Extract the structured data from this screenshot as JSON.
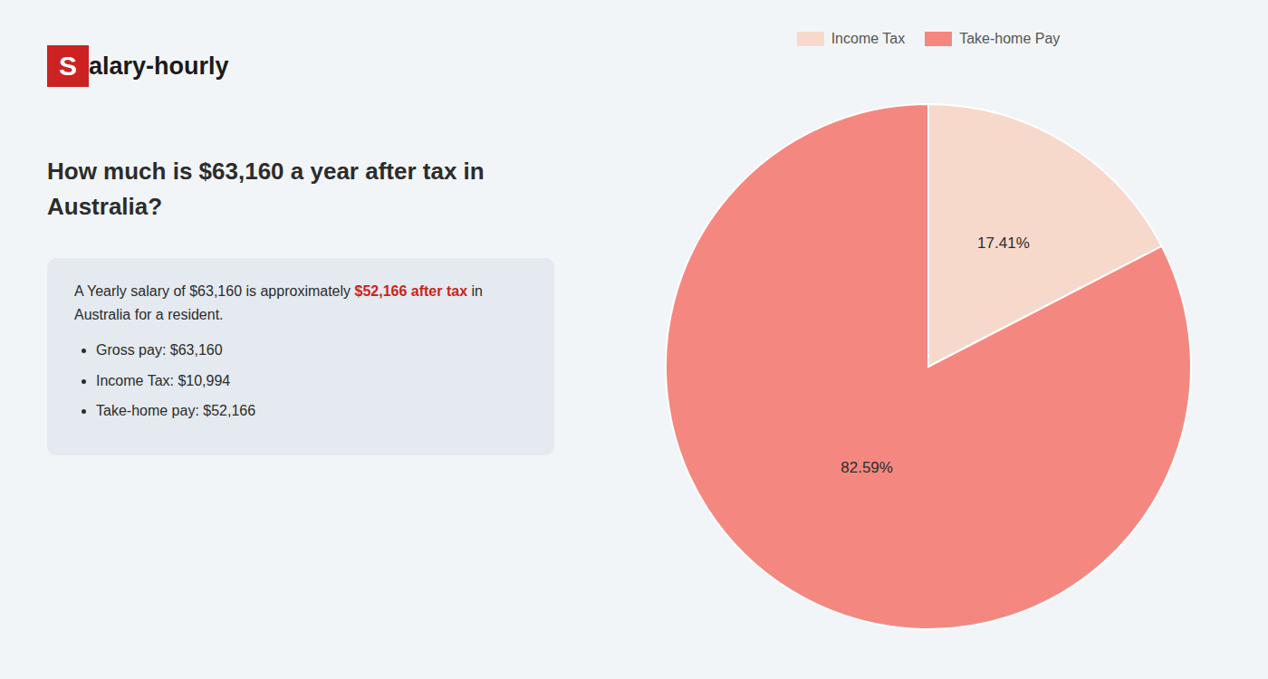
{
  "chart_data": {
    "type": "pie",
    "title": "How much is $63,160 a year after tax in\nAustralia?",
    "categories": [
      "Income Tax",
      "Take-home Pay"
    ],
    "values": [
      17.41,
      82.59
    ],
    "value_labels": [
      "17.41%",
      "82.59%"
    ],
    "colors": [
      "#f7d9cc",
      "#f48880"
    ],
    "data_labels": true,
    "legend": "top",
    "annotations": [
      "S",
      "alary-hourly",
      "A Yearly salary of $63,160 is approximately ",
      "$52,166 after tax",
      " in",
      "Australia for a resident.",
      "Gross pay: $63,160",
      "Income Tax: $10,994",
      "Take-home pay: $52,166"
    ]
  }
}
